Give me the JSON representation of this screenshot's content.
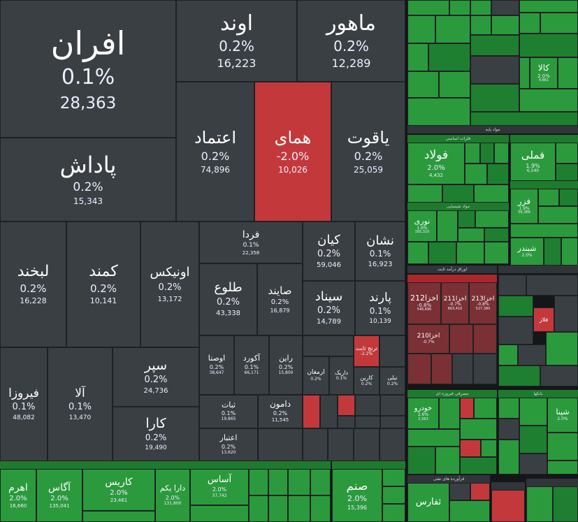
{
  "main_tiles": [
    {
      "id": "afran",
      "title": "افران",
      "pct": "0.1%",
      "value": "28,363"
    },
    {
      "id": "avand",
      "title": "اوند",
      "pct": "0.2%",
      "value": "16,223"
    },
    {
      "id": "mahor",
      "title": "ماهور",
      "pct": "0.2%",
      "value": "12,289"
    },
    {
      "id": "padash",
      "title": "پاداش",
      "pct": "0.2%",
      "value": "15,343"
    },
    {
      "id": "etemad",
      "title": "اعتماد",
      "pct": "0.2%",
      "value": "74,896"
    },
    {
      "id": "homay",
      "title": "همای",
      "pct": "-2.0%",
      "value": "10,026"
    },
    {
      "id": "yaghut",
      "title": "یاقوت",
      "pct": "0.2%",
      "value": "25,059"
    },
    {
      "id": "lebkhand",
      "title": "لبخند",
      "pct": "0.2%",
      "value": "16,228"
    },
    {
      "id": "kamand",
      "title": "کمند",
      "pct": "0.2%",
      "value": "10,141"
    },
    {
      "id": "onix",
      "title": "اونیکس",
      "pct": "0.2%",
      "value": "13,172"
    },
    {
      "id": "farda",
      "title": "فردا",
      "pct": "0.1%",
      "value": "22,358"
    },
    {
      "id": "kian",
      "title": "کیان",
      "pct": "0.2%",
      "value": "59,046"
    },
    {
      "id": "neshan",
      "title": "نشان",
      "pct": "0.1%",
      "value": "16,923"
    },
    {
      "id": "tolu",
      "title": "طلوع",
      "pct": "0.2%",
      "value": "43,338"
    },
    {
      "id": "saind",
      "title": "صایند",
      "pct": "0.2%",
      "value": "16,879"
    },
    {
      "id": "sinad",
      "title": "سیناد",
      "pct": "0.2%",
      "value": "14,789"
    },
    {
      "id": "parand",
      "title": "پارند",
      "pct": "0.1%",
      "value": "10,139"
    },
    {
      "id": "firouza",
      "title": "فیروزا",
      "pct": "0.1%",
      "value": "48,082"
    },
    {
      "id": "ala",
      "title": "آلا",
      "pct": "0.1%",
      "value": "13,470"
    },
    {
      "id": "separ",
      "title": "سپر",
      "pct": "0.2%",
      "value": "24,736"
    },
    {
      "id": "kara",
      "title": "کارا",
      "pct": "0.2%",
      "value": "19,490"
    },
    {
      "id": "osta",
      "title": "اوصتا",
      "pct": "0.2%",
      "value": "38,647"
    },
    {
      "id": "akord",
      "title": "آکورد",
      "pct": "0.1%",
      "value": "66,171"
    },
    {
      "id": "rayin",
      "title": "راین",
      "pct": "0.2%",
      "value": "15,800"
    },
    {
      "id": "sabat",
      "title": "ثبات",
      "pct": "0.1%",
      "value": "19,865"
    },
    {
      "id": "damon",
      "title": "دامون",
      "pct": "0.2%",
      "value": "11,545"
    },
    {
      "id": "etebar",
      "title": "اعتبار",
      "pct": "0.2%",
      "value": "13,620"
    },
    {
      "id": "toranj",
      "title": "ترنج ثابت",
      "pct": "-2.2%",
      "value": "10,153"
    },
    {
      "id": "armaghan",
      "title": "ارمغان",
      "pct": "0.2%",
      "value": "10,153"
    },
    {
      "id": "karin",
      "title": "کارین",
      "pct": "0.2%",
      "value": "15,201"
    },
    {
      "id": "daric",
      "title": "داریک",
      "pct": "0.1%",
      "value": "21,926"
    },
    {
      "id": "nili",
      "title": "نیلی",
      "pct": "0.2%",
      "value": "10,240"
    }
  ],
  "bottom_left_tiles": [
    {
      "id": "ahrom",
      "title": "اهرم",
      "pct": "2.0%",
      "value": "16,660"
    },
    {
      "id": "agas",
      "title": "آگاس",
      "pct": "2.0%",
      "value": "135,041"
    },
    {
      "id": "karis",
      "title": "کاریس",
      "pct": "2.0%",
      "value": "23,461"
    },
    {
      "id": "daraykom",
      "title": "دارا یکم",
      "pct": "2.0%",
      "value": "131,800"
    },
    {
      "id": "asas",
      "title": "آساس",
      "pct": "2.0%",
      "value": "37,742"
    },
    {
      "id": "sanam",
      "title": "صنم",
      "pct": "2.0%",
      "value": "15,396"
    }
  ],
  "right_sectors": [
    {
      "id": "base-metals",
      "label": "فلزات اساسی"
    },
    {
      "id": "chemical",
      "label": "مواد شیمیایی"
    },
    {
      "id": "bonds",
      "label": "اوراق درآمد ثابت"
    },
    {
      "id": "retail-funds",
      "label": "مصرفی فیروزه ای"
    },
    {
      "id": "auto",
      "label": "خودرو"
    },
    {
      "id": "banks",
      "label": "بانکها"
    },
    {
      "id": "petroleum",
      "label": "فرآورده های نفتی"
    }
  ],
  "right_tiles": [
    {
      "id": "foolad",
      "title": "فولاد",
      "pct": "2.0%",
      "value": "4,432"
    },
    {
      "id": "felemi",
      "title": "فملی",
      "pct": "1.9%",
      "value": "6,540"
    },
    {
      "id": "fazar",
      "title": "فزر",
      "pct": "1.9%",
      "value": "56,388"
    },
    {
      "id": "noori",
      "title": "نوری",
      "pct": "1.6%",
      "value": "165,310"
    },
    {
      "id": "shebandar",
      "title": "شبندر",
      "pct": "2.0%",
      "value": ""
    },
    {
      "id": "shapna",
      "title": "شپنا",
      "pct": "2.0%",
      "value": ""
    },
    {
      "id": "khodro",
      "title": "خودرو",
      "pct": "2.6%",
      "value": "2,563"
    },
    {
      "id": "tefars",
      "title": "ثفارس",
      "pct": "",
      "value": ""
    },
    {
      "id": "kala",
      "title": "کالا",
      "pct": "2.0%",
      "value": "4,861"
    },
    {
      "id": "akhza212",
      "title": "اخزا212",
      "pct": "-0.8%",
      "value": "546,690"
    },
    {
      "id": "akhza211",
      "title": "اخزا211",
      "pct": "-0.7%",
      "value": "663,410"
    },
    {
      "id": "akhza213",
      "title": "اخزا213",
      "pct": "-0.8%",
      "value": "527,380"
    },
    {
      "id": "akhza210",
      "title": "اخزا210",
      "pct": "-0.7%",
      "value": ""
    },
    {
      "id": "falaz",
      "title": "فلاز",
      "pct": "",
      "value": ""
    }
  ],
  "colors": {
    "neutral": "#3a3f44",
    "negative": "#c3393b",
    "positive": "#2b9a3d"
  }
}
